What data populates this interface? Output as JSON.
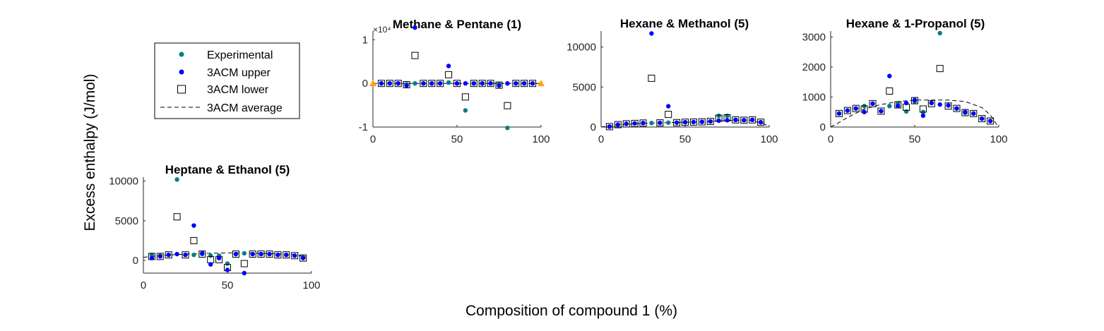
{
  "figure": {
    "ylabel": "Excess enthalpy (J/mol)",
    "xlabel": "Composition of compound 1 (%)",
    "legend": {
      "placement": "top-left",
      "entries": [
        {
          "label": "Experimental",
          "marker": "filled-circle",
          "color": "#008080"
        },
        {
          "label": "3ACM upper",
          "marker": "filled-circle",
          "color": "#0000ff"
        },
        {
          "label": "3ACM lower",
          "marker": "open-square",
          "color": "#000000"
        },
        {
          "label": "3ACM average",
          "marker": "dashed-line",
          "color": "#000000"
        }
      ]
    },
    "colors": {
      "experimental": "#008080",
      "upper": "#0000ff",
      "lower": "#000000",
      "average": "#000000",
      "endpoint_marker": "#ffa500"
    }
  },
  "chart_data": [
    {
      "type": "scatter",
      "title": "Methane & Pentane (1)",
      "xlim": [
        0,
        100
      ],
      "ylim": [
        -1,
        1.2
      ],
      "xticks": [
        "0",
        "50",
        "100"
      ],
      "yticks": [
        "-1",
        "0",
        "1"
      ],
      "exponent_label": "×10⁴",
      "grid": false,
      "series": [
        {
          "name": "Experimental",
          "x": [
            5,
            10,
            15,
            20,
            25,
            30,
            35,
            40,
            45,
            50,
            55,
            60,
            65,
            70,
            75,
            80,
            85,
            90,
            95
          ],
          "y": [
            0,
            0,
            0,
            -0.02,
            0,
            0,
            0,
            0,
            0.02,
            0,
            -0.62,
            0,
            0,
            0,
            -0.02,
            -1.02,
            0,
            0,
            0
          ]
        },
        {
          "name": "3ACM upper",
          "x": [
            5,
            10,
            15,
            20,
            25,
            30,
            35,
            40,
            45,
            50,
            55,
            60,
            65,
            70,
            75,
            80,
            85,
            90,
            95
          ],
          "y": [
            0,
            0,
            0,
            -0.05,
            1.28,
            0,
            0,
            0,
            0.4,
            0,
            0,
            0,
            0,
            0,
            -0.05,
            0,
            0,
            0,
            0
          ]
        },
        {
          "name": "3ACM lower",
          "x": [
            5,
            10,
            15,
            20,
            25,
            30,
            35,
            40,
            45,
            50,
            55,
            60,
            65,
            70,
            75,
            80,
            85,
            90,
            95
          ],
          "y": [
            0,
            0,
            0,
            -0.03,
            0.64,
            0,
            0,
            0,
            0.2,
            0,
            -0.31,
            0,
            0,
            0,
            -0.04,
            -0.51,
            0,
            0,
            0
          ]
        },
        {
          "name": "3ACM average",
          "x": [
            0,
            100
          ],
          "y": [
            0,
            0
          ]
        },
        {
          "name": "endpoints",
          "x": [
            0,
            100
          ],
          "y": [
            0,
            0
          ]
        }
      ]
    },
    {
      "type": "scatter",
      "title": "Hexane & Methanol (5)",
      "xlim": [
        0,
        100
      ],
      "ylim": [
        0,
        12000
      ],
      "xticks": [
        "0",
        "50",
        "100"
      ],
      "yticks": [
        "0",
        "5000",
        "10000"
      ],
      "grid": false,
      "series": [
        {
          "name": "Experimental",
          "x": [
            5,
            10,
            15,
            20,
            25,
            30,
            35,
            40,
            45,
            50,
            55,
            60,
            65,
            70,
            75,
            80,
            85,
            90,
            95
          ],
          "y": [
            50,
            300,
            400,
            450,
            500,
            500,
            520,
            550,
            550,
            600,
            620,
            650,
            700,
            1400,
            1400,
            900,
            850,
            900,
            600
          ]
        },
        {
          "name": "3ACM upper",
          "x": [
            5,
            10,
            15,
            20,
            25,
            30,
            35,
            40,
            45,
            50,
            55,
            60,
            65,
            70,
            75,
            80,
            85,
            90,
            95
          ],
          "y": [
            50,
            300,
            400,
            450,
            500,
            11700,
            520,
            2600,
            550,
            600,
            620,
            650,
            700,
            800,
            850,
            900,
            850,
            900,
            600
          ]
        },
        {
          "name": "3ACM lower",
          "x": [
            5,
            10,
            15,
            20,
            25,
            30,
            35,
            40,
            45,
            50,
            55,
            60,
            65,
            70,
            75,
            80,
            85,
            90,
            95
          ],
          "y": [
            50,
            300,
            400,
            450,
            500,
            6100,
            520,
            1580,
            550,
            600,
            620,
            650,
            700,
            1100,
            1150,
            900,
            850,
            900,
            600
          ]
        },
        {
          "name": "3ACM average",
          "x": [
            0,
            10,
            20,
            30,
            40,
            50,
            60,
            70,
            80,
            90,
            97,
            100
          ],
          "y": [
            0,
            250,
            400,
            500,
            550,
            600,
            650,
            750,
            850,
            800,
            400,
            0
          ]
        }
      ]
    },
    {
      "type": "scatter",
      "title": "Hexane & 1-Propanol (5)",
      "xlim": [
        0,
        100
      ],
      "ylim": [
        0,
        3200
      ],
      "xticks": [
        "0",
        "50",
        "100"
      ],
      "yticks": [
        "0",
        "1000",
        "2000",
        "3000"
      ],
      "grid": false,
      "series": [
        {
          "name": "Experimental",
          "x": [
            5,
            10,
            15,
            20,
            25,
            30,
            35,
            40,
            45,
            50,
            55,
            60,
            65,
            70,
            75,
            80,
            85,
            90,
            95
          ],
          "y": [
            450,
            550,
            620,
            700,
            780,
            530,
            700,
            780,
            520,
            850,
            500,
            800,
            3130,
            720,
            620,
            470,
            450,
            280,
            200
          ]
        },
        {
          "name": "3ACM upper",
          "x": [
            5,
            10,
            15,
            20,
            25,
            30,
            35,
            40,
            45,
            50,
            55,
            60,
            65,
            70,
            75,
            80,
            85,
            90,
            95
          ],
          "y": [
            450,
            550,
            620,
            500,
            780,
            530,
            1700,
            700,
            800,
            900,
            380,
            800,
            750,
            720,
            620,
            500,
            450,
            280,
            200
          ]
        },
        {
          "name": "3ACM lower",
          "x": [
            5,
            10,
            15,
            20,
            25,
            30,
            35,
            40,
            45,
            50,
            55,
            60,
            65,
            70,
            75,
            80,
            85,
            90,
            95
          ],
          "y": [
            450,
            550,
            620,
            600,
            780,
            530,
            1200,
            740,
            660,
            880,
            600,
            780,
            1950,
            700,
            620,
            480,
            450,
            280,
            200
          ]
        },
        {
          "name": "3ACM average",
          "x": [
            0,
            5,
            10,
            20,
            30,
            40,
            50,
            60,
            70,
            80,
            90,
            95,
            98,
            100
          ],
          "y": [
            0,
            150,
            320,
            600,
            750,
            850,
            900,
            900,
            900,
            850,
            650,
            400,
            150,
            0
          ]
        }
      ]
    },
    {
      "type": "scatter",
      "title": "Heptane & Ethanol (5)",
      "xlim": [
        0,
        100
      ],
      "ylim": [
        -1600,
        10500
      ],
      "xticks": [
        "0",
        "50",
        "100"
      ],
      "yticks": [
        "0",
        "5000",
        "10000"
      ],
      "grid": false,
      "series": [
        {
          "name": "Experimental",
          "x": [
            5,
            10,
            15,
            20,
            25,
            30,
            35,
            40,
            45,
            50,
            55,
            60,
            65,
            70,
            75,
            80,
            85,
            90,
            95
          ],
          "y": [
            700,
            600,
            700,
            10200,
            700,
            700,
            800,
            600,
            600,
            -400,
            800,
            900,
            800,
            800,
            800,
            700,
            700,
            600,
            400
          ]
        },
        {
          "name": "3ACM upper",
          "x": [
            5,
            10,
            15,
            20,
            25,
            30,
            35,
            40,
            45,
            50,
            55,
            60,
            65,
            70,
            75,
            80,
            85,
            90,
            95
          ],
          "y": [
            300,
            500,
            700,
            800,
            700,
            4400,
            900,
            -500,
            300,
            -1200,
            800,
            -1600,
            800,
            800,
            800,
            700,
            700,
            600,
            300
          ]
        },
        {
          "name": "3ACM lower",
          "x": [
            5,
            10,
            15,
            20,
            25,
            30,
            35,
            40,
            45,
            50,
            55,
            60,
            65,
            70,
            75,
            80,
            85,
            90,
            95
          ],
          "y": [
            500,
            500,
            700,
            5500,
            700,
            2500,
            800,
            100,
            100,
            -900,
            800,
            -400,
            800,
            800,
            800,
            700,
            700,
            600,
            300
          ]
        },
        {
          "name": "3ACM average",
          "x": [
            0,
            10,
            20,
            30,
            40,
            50,
            60,
            70,
            80,
            90,
            97
          ],
          "y": [
            400,
            600,
            750,
            850,
            900,
            950,
            950,
            900,
            850,
            750,
            400
          ]
        }
      ]
    }
  ]
}
